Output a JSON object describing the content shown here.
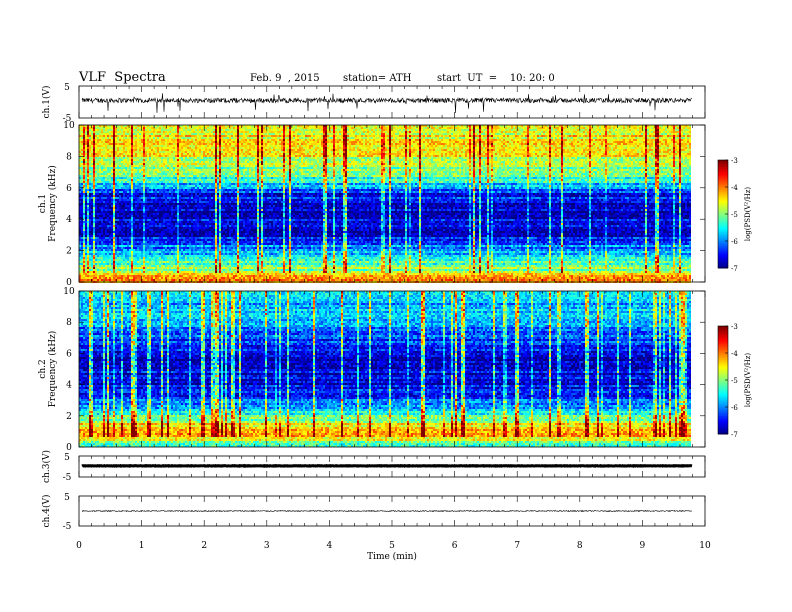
{
  "header": {
    "title": "VLF  Spectra",
    "date": "Feb. 9  , 2015",
    "station": "station= ATH",
    "start": "start  UT  =    10: 20: 0"
  },
  "chart_data": {
    "type": "heatmap",
    "xlabel": "Time  (min)",
    "xlim": [
      0,
      10
    ],
    "x_ticks": [
      "0",
      "1",
      "2",
      "3",
      "4",
      "5",
      "6",
      "7",
      "8",
      "9",
      "10"
    ],
    "data_end_min": 9.8,
    "panels": [
      {
        "id": "ch1-waveform",
        "type": "line",
        "ylabel": "ch.1(V)",
        "ylim": [
          -5,
          5
        ],
        "y_ticks": [
          "5",
          "-5"
        ],
        "baseline_v": 0.5,
        "noise_amplitude_v": 1.5
      },
      {
        "id": "ch1-spectrogram",
        "type": "heatmap",
        "ylabel_line1": "ch.1",
        "ylabel_line2": "Frequency  (kHz)",
        "ylim": [
          0,
          10
        ],
        "y_ticks": [
          "0",
          "2",
          "4",
          "6",
          "8",
          "10"
        ],
        "colorbar": {
          "label": "log(PSD(V²/Hz)",
          "range": [
            -7,
            -3
          ],
          "ticks": [
            "-3",
            "-4",
            "-5",
            "-6",
            "-7"
          ]
        },
        "profile_khz": [
          [
            0,
            -4.0
          ],
          [
            0.5,
            -3.9
          ],
          [
            0.8,
            -4.9
          ],
          [
            1.2,
            -5.3
          ],
          [
            1.8,
            -5.6
          ],
          [
            2.3,
            -6.0
          ],
          [
            3.0,
            -6.6
          ],
          [
            5.0,
            -6.7
          ],
          [
            5.8,
            -6.3
          ],
          [
            6.3,
            -5.6
          ],
          [
            7.0,
            -5.0
          ],
          [
            8.0,
            -4.6
          ],
          [
            10.0,
            -4.5
          ]
        ]
      },
      {
        "id": "ch2-spectrogram",
        "type": "heatmap",
        "ylabel_line1": "ch.2",
        "ylabel_line2": "Frequency  (kHz)",
        "ylim": [
          0,
          10
        ],
        "y_ticks": [
          "0",
          "2",
          "4",
          "6",
          "8",
          "10"
        ],
        "colorbar": {
          "label": "log(PSD(V²/Hz)",
          "range": [
            -7,
            -3
          ],
          "ticks": [
            "-3",
            "-4",
            "-5",
            "-6",
            "-7"
          ]
        },
        "profile_khz": [
          [
            0,
            -5.6
          ],
          [
            0.6,
            -4.3
          ],
          [
            1.5,
            -4.6
          ],
          [
            2.3,
            -5.5
          ],
          [
            3.0,
            -6.2
          ],
          [
            4.0,
            -6.6
          ],
          [
            6.0,
            -6.6
          ],
          [
            7.0,
            -6.3
          ],
          [
            8.0,
            -5.9
          ],
          [
            10.0,
            -5.6
          ]
        ]
      },
      {
        "id": "ch3-waveform",
        "type": "line",
        "ylabel": "ch.3(V)",
        "ylim": [
          -5,
          5
        ],
        "y_ticks": [
          "5",
          "-5"
        ],
        "baseline_v": 0.3,
        "noise_amplitude_v": 0.2
      },
      {
        "id": "ch4-waveform",
        "type": "line",
        "ylabel": "ch.4(V)",
        "ylim": [
          -5,
          5
        ],
        "y_ticks": [
          "5",
          "-5"
        ],
        "baseline_v": 0.0,
        "noise_amplitude_v": 0.35
      }
    ]
  }
}
